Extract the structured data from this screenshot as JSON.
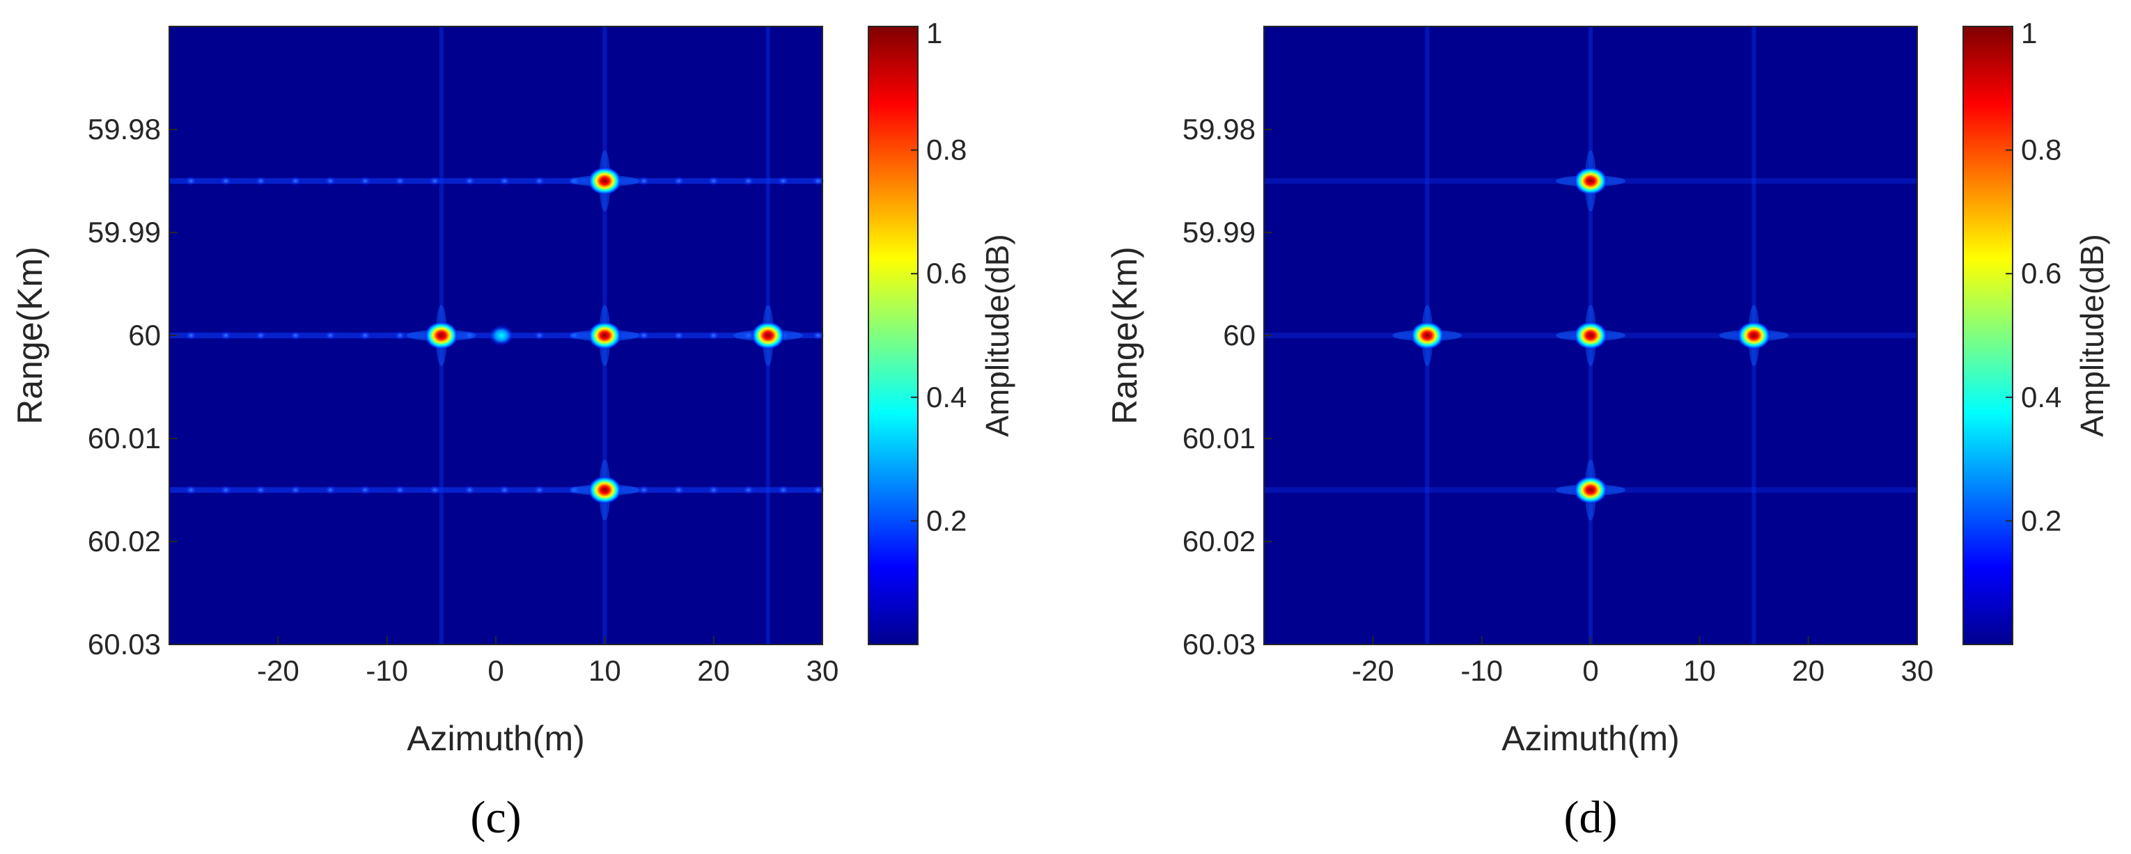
{
  "chart_data": [
    {
      "type": "heatmap",
      "panel_label": "(c)",
      "xlabel": "Azimuth(m)",
      "ylabel": "Range(Km)",
      "xlim": [
        -30,
        30
      ],
      "ylim": [
        59.97,
        60.03
      ],
      "y_reversed": true,
      "xticks": [
        -20,
        -10,
        0,
        10,
        20,
        30
      ],
      "xtick_labels": [
        "-20",
        "-10",
        "0",
        "10",
        "20",
        "30"
      ],
      "yticks": [
        59.98,
        59.99,
        60,
        60.01,
        60.02,
        60.03
      ],
      "ytick_labels": [
        "59.98",
        "59.99",
        "60",
        "60.01",
        "60.02",
        "60.03"
      ],
      "colorbar": {
        "label": "Amplitude(dB)",
        "range": [
          0,
          1
        ],
        "ticks": [
          0.2,
          0.4,
          0.6,
          0.8,
          1
        ],
        "tick_labels": [
          "0.2",
          "0.4",
          "0.6",
          "0.8",
          "1"
        ],
        "colormap": "jet"
      },
      "background_value": 0.05,
      "targets": [
        {
          "azimuth": 10,
          "range": 59.985,
          "amplitude": 1
        },
        {
          "azimuth": -5,
          "range": 60.0,
          "amplitude": 1
        },
        {
          "azimuth": 10,
          "range": 60.0,
          "amplitude": 1
        },
        {
          "azimuth": 25,
          "range": 60.0,
          "amplitude": 1
        },
        {
          "azimuth": 10,
          "range": 60.015,
          "amplitude": 1
        }
      ],
      "artifacts": [
        {
          "azimuth": 0.5,
          "range": 60.0,
          "amplitude": 0.4
        }
      ],
      "range_sidelobe_rows": [
        59.985,
        60.0,
        60.015
      ],
      "sidelobe_level": "high"
    },
    {
      "type": "heatmap",
      "panel_label": "(d)",
      "xlabel": "Azimuth(m)",
      "ylabel": "Range(Km)",
      "xlim": [
        -30,
        30
      ],
      "ylim": [
        59.97,
        60.03
      ],
      "y_reversed": true,
      "xticks": [
        -20,
        -10,
        0,
        10,
        20,
        30
      ],
      "xtick_labels": [
        "-20",
        "-10",
        "0",
        "10",
        "20",
        "30"
      ],
      "yticks": [
        59.98,
        59.99,
        60,
        60.01,
        60.02,
        60.03
      ],
      "ytick_labels": [
        "59.98",
        "59.99",
        "60",
        "60.01",
        "60.02",
        "60.03"
      ],
      "colorbar": {
        "label": "Amplitude(dB)",
        "range": [
          0,
          1
        ],
        "ticks": [
          0.2,
          0.4,
          0.6,
          0.8,
          1
        ],
        "tick_labels": [
          "0.2",
          "0.4",
          "0.6",
          "0.8",
          "1"
        ],
        "colormap": "jet"
      },
      "background_value": 0.05,
      "targets": [
        {
          "azimuth": 0,
          "range": 59.985,
          "amplitude": 1
        },
        {
          "azimuth": -15,
          "range": 60.0,
          "amplitude": 1
        },
        {
          "azimuth": 0,
          "range": 60.0,
          "amplitude": 1
        },
        {
          "azimuth": 15,
          "range": 60.0,
          "amplitude": 1
        },
        {
          "azimuth": 0,
          "range": 60.015,
          "amplitude": 1
        }
      ],
      "artifacts": [],
      "range_sidelobe_rows": [
        59.985,
        60.0,
        60.015
      ],
      "sidelobe_level": "low"
    }
  ]
}
